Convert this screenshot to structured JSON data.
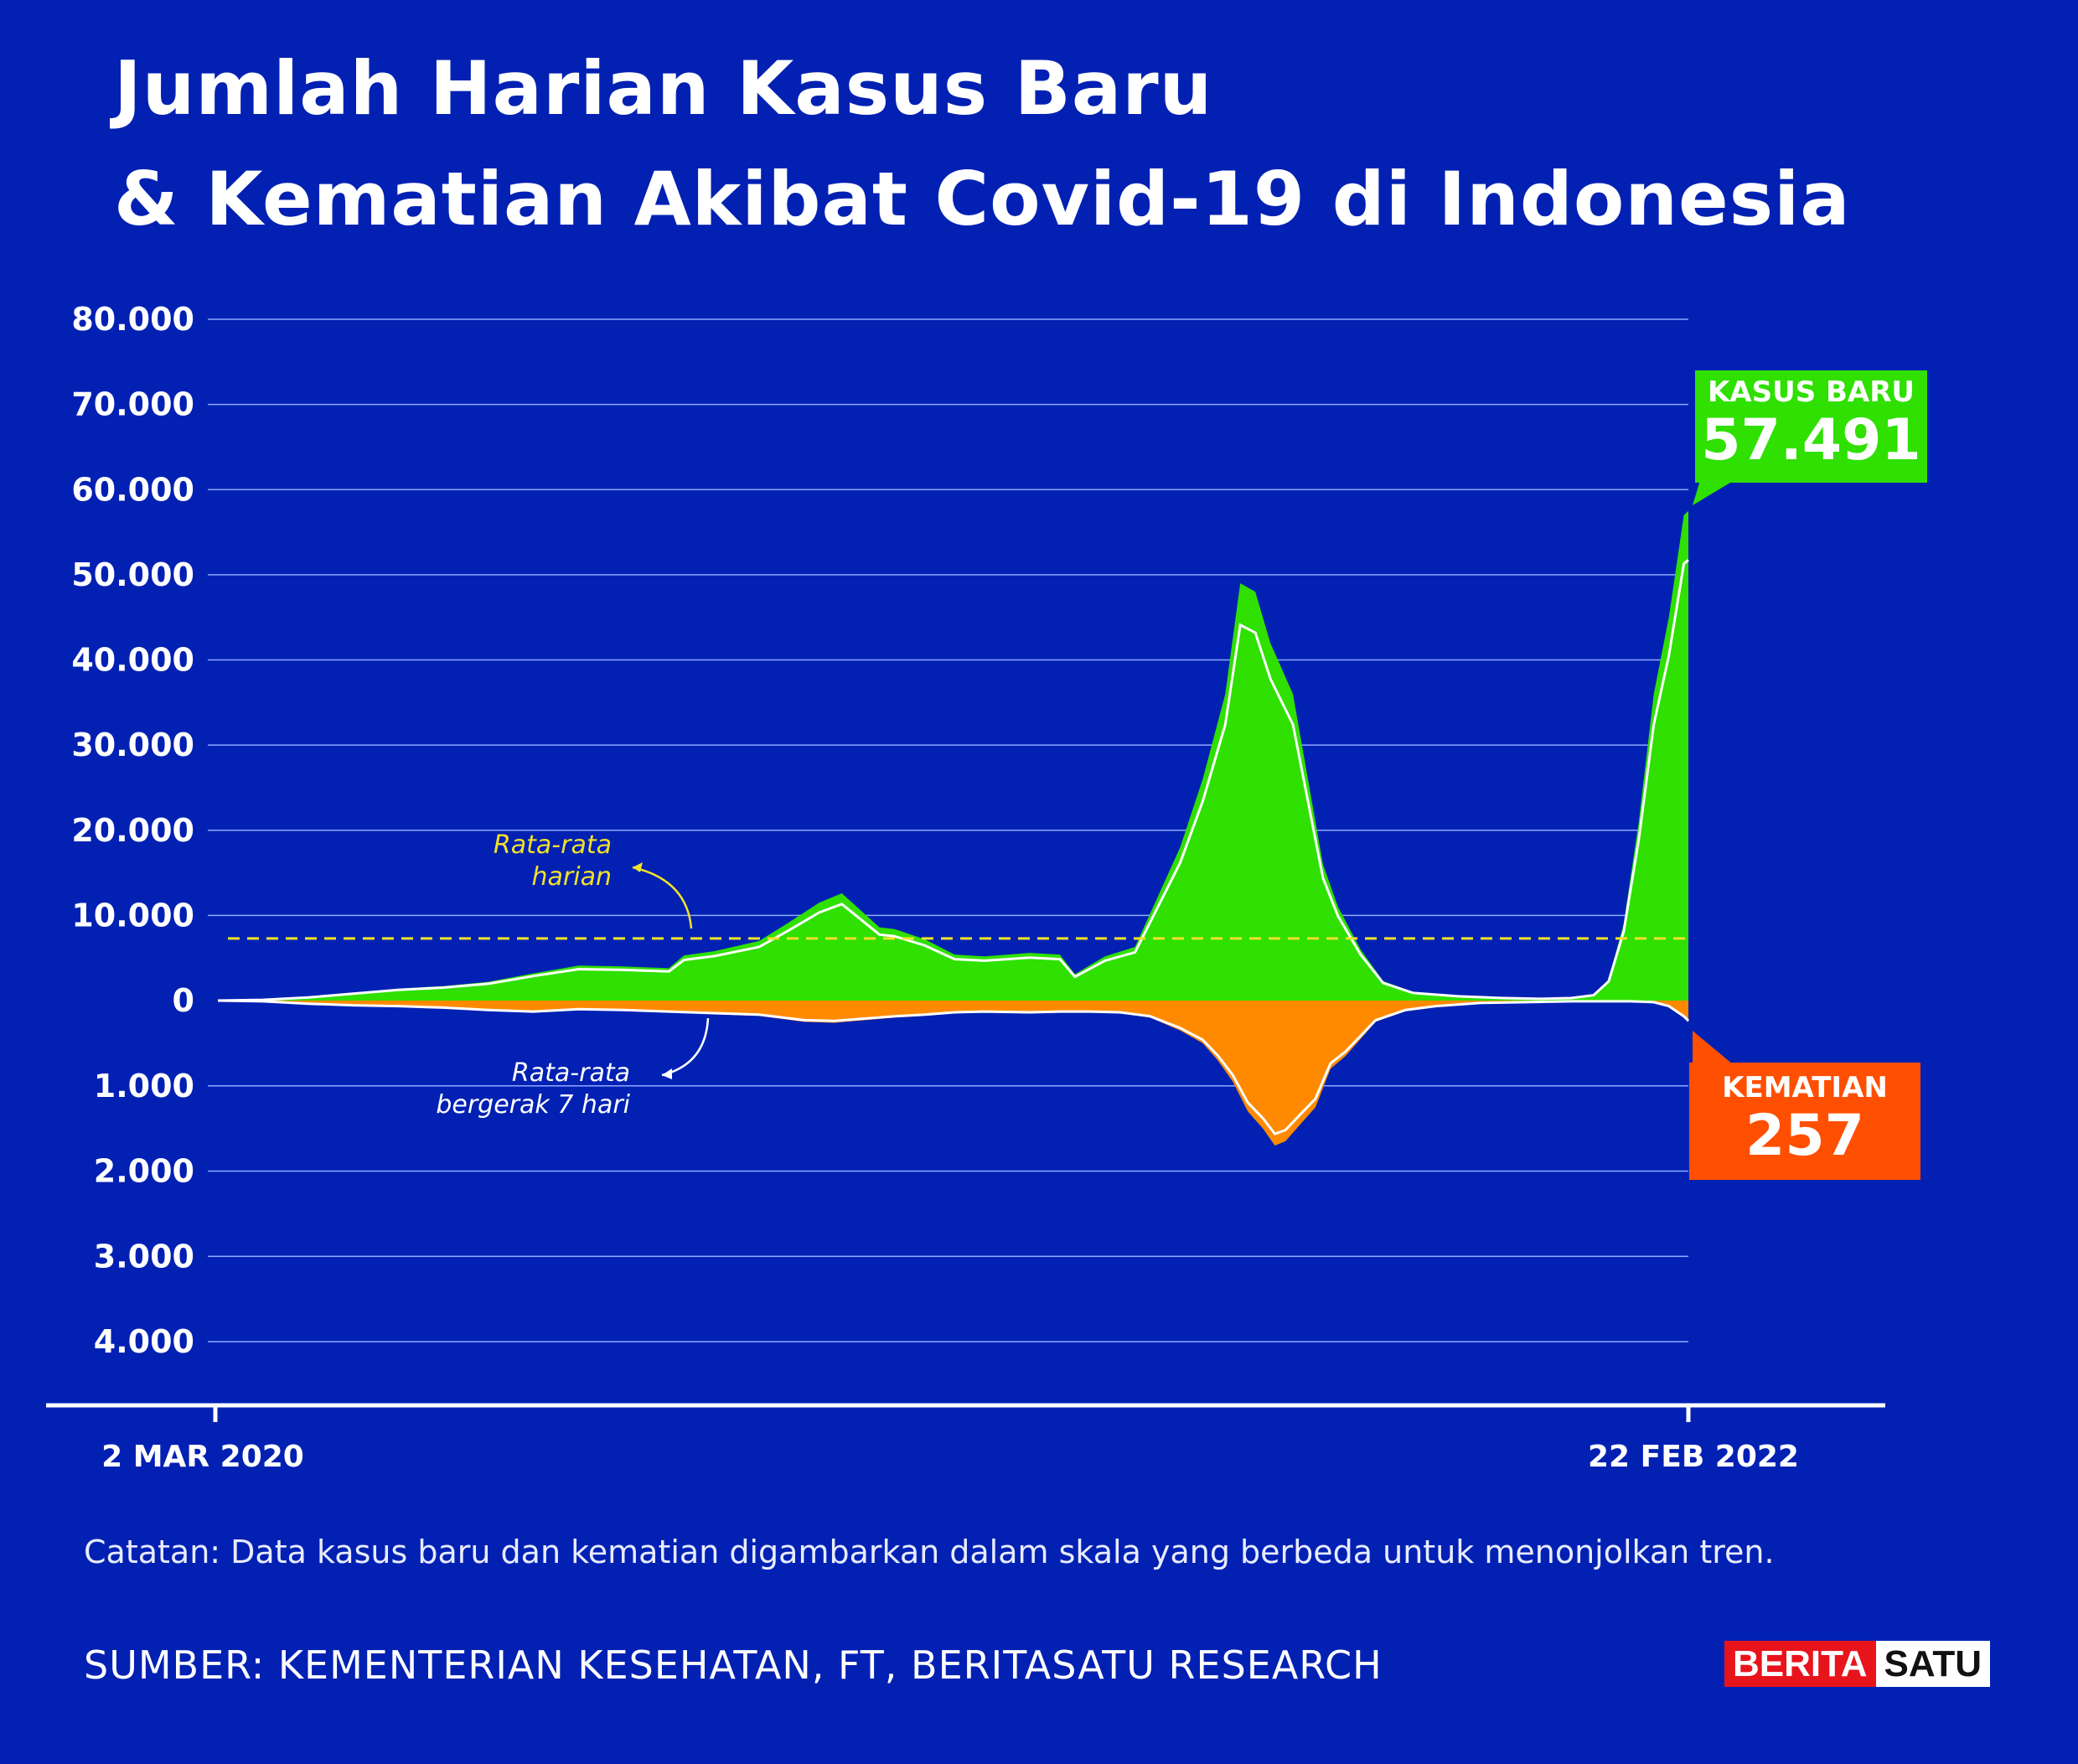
{
  "title": {
    "line1": "Jumlah Harian Kasus Baru",
    "line2": "& Kematian Akibat Covid-19 di Indonesia"
  },
  "chart_data": {
    "type": "area",
    "x_start": "2 MAR 2020",
    "x_end": "22 FEB 2022",
    "x_tick_labels": [
      "2 MAR 2020",
      "22 FEB 2022"
    ],
    "y_ticks_cases": [
      "80.000",
      "70.000",
      "60.000",
      "50.000",
      "40.000",
      "30.000",
      "20.000",
      "10.000",
      "0"
    ],
    "y_ticks_deaths": [
      "1.000",
      "2.000",
      "3.000",
      "4.000"
    ],
    "ylim_cases": [
      0,
      80000
    ],
    "ylim_deaths": [
      0,
      4000
    ],
    "daily_average_cases": 7300,
    "annotations": {
      "daily_average": [
        "Rata-rata",
        "harian"
      ],
      "moving_average": [
        "Rata-rata",
        "bergerak 7 hari"
      ]
    },
    "series": [
      {
        "name": "KASUS BARU",
        "color": "#2fe000",
        "points": [
          [
            0,
            0
          ],
          [
            30,
            100
          ],
          [
            60,
            400
          ],
          [
            90,
            900
          ],
          [
            120,
            1400
          ],
          [
            150,
            1700
          ],
          [
            180,
            2200
          ],
          [
            210,
            3200
          ],
          [
            240,
            4100
          ],
          [
            270,
            4000
          ],
          [
            300,
            3800
          ],
          [
            310,
            5300
          ],
          [
            330,
            5800
          ],
          [
            360,
            7000
          ],
          [
            380,
            9200
          ],
          [
            400,
            11500
          ],
          [
            415,
            12600
          ],
          [
            425,
            11000
          ],
          [
            440,
            8600
          ],
          [
            450,
            8400
          ],
          [
            470,
            7200
          ],
          [
            490,
            5400
          ],
          [
            510,
            5200
          ],
          [
            540,
            5600
          ],
          [
            560,
            5400
          ],
          [
            570,
            3100
          ],
          [
            590,
            5200
          ],
          [
            610,
            6300
          ],
          [
            640,
            18000
          ],
          [
            655,
            26000
          ],
          [
            670,
            36000
          ],
          [
            680,
            49000
          ],
          [
            690,
            48000
          ],
          [
            700,
            42000
          ],
          [
            715,
            36000
          ],
          [
            725,
            26000
          ],
          [
            735,
            16000
          ],
          [
            745,
            11000
          ],
          [
            760,
            6000
          ],
          [
            775,
            2300
          ],
          [
            795,
            1000
          ],
          [
            825,
            560
          ],
          [
            855,
            330
          ],
          [
            880,
            230
          ],
          [
            900,
            330
          ],
          [
            915,
            700
          ],
          [
            925,
            2500
          ],
          [
            935,
            9000
          ],
          [
            945,
            21000
          ],
          [
            955,
            36000
          ],
          [
            965,
            45000
          ],
          [
            975,
            57000
          ],
          [
            978,
            57491
          ]
        ],
        "final_value": "57.491",
        "callout_label": "KASUS BARU"
      },
      {
        "name": "KEMATIAN",
        "color": "#ff8a00",
        "points": [
          [
            0,
            0
          ],
          [
            30,
            10
          ],
          [
            60,
            40
          ],
          [
            90,
            60
          ],
          [
            120,
            70
          ],
          [
            150,
            90
          ],
          [
            180,
            120
          ],
          [
            210,
            140
          ],
          [
            240,
            110
          ],
          [
            270,
            120
          ],
          [
            300,
            140
          ],
          [
            330,
            160
          ],
          [
            360,
            180
          ],
          [
            390,
            250
          ],
          [
            410,
            260
          ],
          [
            430,
            230
          ],
          [
            450,
            200
          ],
          [
            470,
            180
          ],
          [
            490,
            150
          ],
          [
            510,
            140
          ],
          [
            540,
            150
          ],
          [
            560,
            140
          ],
          [
            580,
            140
          ],
          [
            600,
            150
          ],
          [
            620,
            200
          ],
          [
            640,
            350
          ],
          [
            655,
            500
          ],
          [
            665,
            700
          ],
          [
            675,
            950
          ],
          [
            685,
            1300
          ],
          [
            695,
            1500
          ],
          [
            703,
            1700
          ],
          [
            710,
            1650
          ],
          [
            720,
            1450
          ],
          [
            730,
            1250
          ],
          [
            740,
            800
          ],
          [
            750,
            650
          ],
          [
            760,
            450
          ],
          [
            770,
            250
          ],
          [
            790,
            120
          ],
          [
            810,
            70
          ],
          [
            840,
            30
          ],
          [
            870,
            20
          ],
          [
            900,
            10
          ],
          [
            940,
            10
          ],
          [
            955,
            20
          ],
          [
            965,
            70
          ],
          [
            975,
            200
          ],
          [
            978,
            257
          ]
        ],
        "final_value": "257",
        "callout_label": "KEMATIAN"
      }
    ]
  },
  "footer": {
    "note": "Catatan: Data kasus baru dan kematian digambarkan dalam skala yang berbeda untuk menonjolkan tren.",
    "source": "SUMBER: KEMENTERIAN KESEHATAN, FT, BERITASATU RESEARCH"
  },
  "logo": {
    "part1": "BERITA",
    "part2": "SATU"
  }
}
